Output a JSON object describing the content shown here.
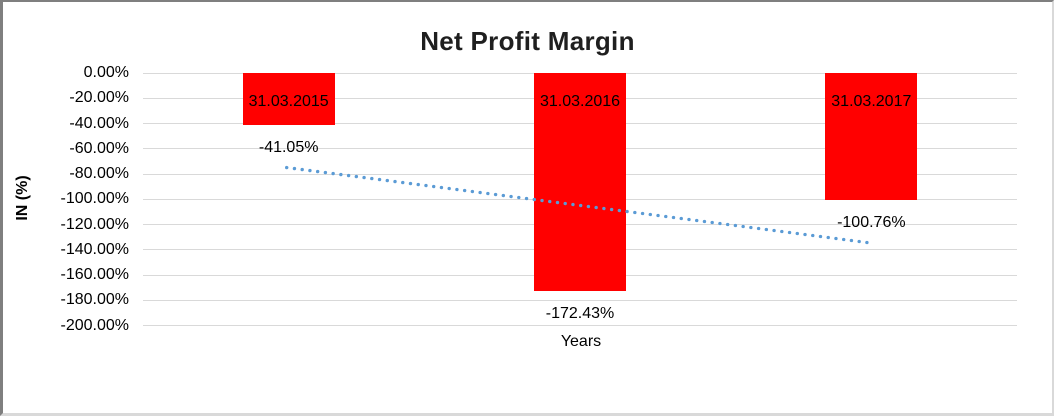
{
  "window": {
    "background": "#FFFFFF",
    "border_dark": "#7F7F7F",
    "border_light": "#D9D9D9"
  },
  "chart_data": {
    "type": "bar",
    "title": "Net Profit Margin",
    "xlabel": "Years",
    "ylabel": "IN (%)",
    "categories": [
      "31.03.2015",
      "31.03.2016",
      "31.03.2017"
    ],
    "values": [
      -41.05,
      -172.43,
      -100.76
    ],
    "data_labels": [
      "-41.05%",
      "-172.43%",
      "-100.76%"
    ],
    "y_ticks": [
      "0.00%",
      "-20.00%",
      "-40.00%",
      "-60.00%",
      "-80.00%",
      "-100.00%",
      "-120.00%",
      "-140.00%",
      "-160.00%",
      "-180.00%",
      "-200.00%"
    ],
    "ylim": [
      -200,
      0
    ],
    "y_tick_step": -20,
    "grid": true,
    "legend": "none",
    "bar_color": "#FF0000",
    "gridline_color": "#D9D9D9",
    "text_color": "#000000",
    "trendline": {
      "type": "linear",
      "style": "dotted",
      "color": "#5B9BD5",
      "endpoints_pct": [
        -74.9,
        -134.6
      ]
    }
  }
}
